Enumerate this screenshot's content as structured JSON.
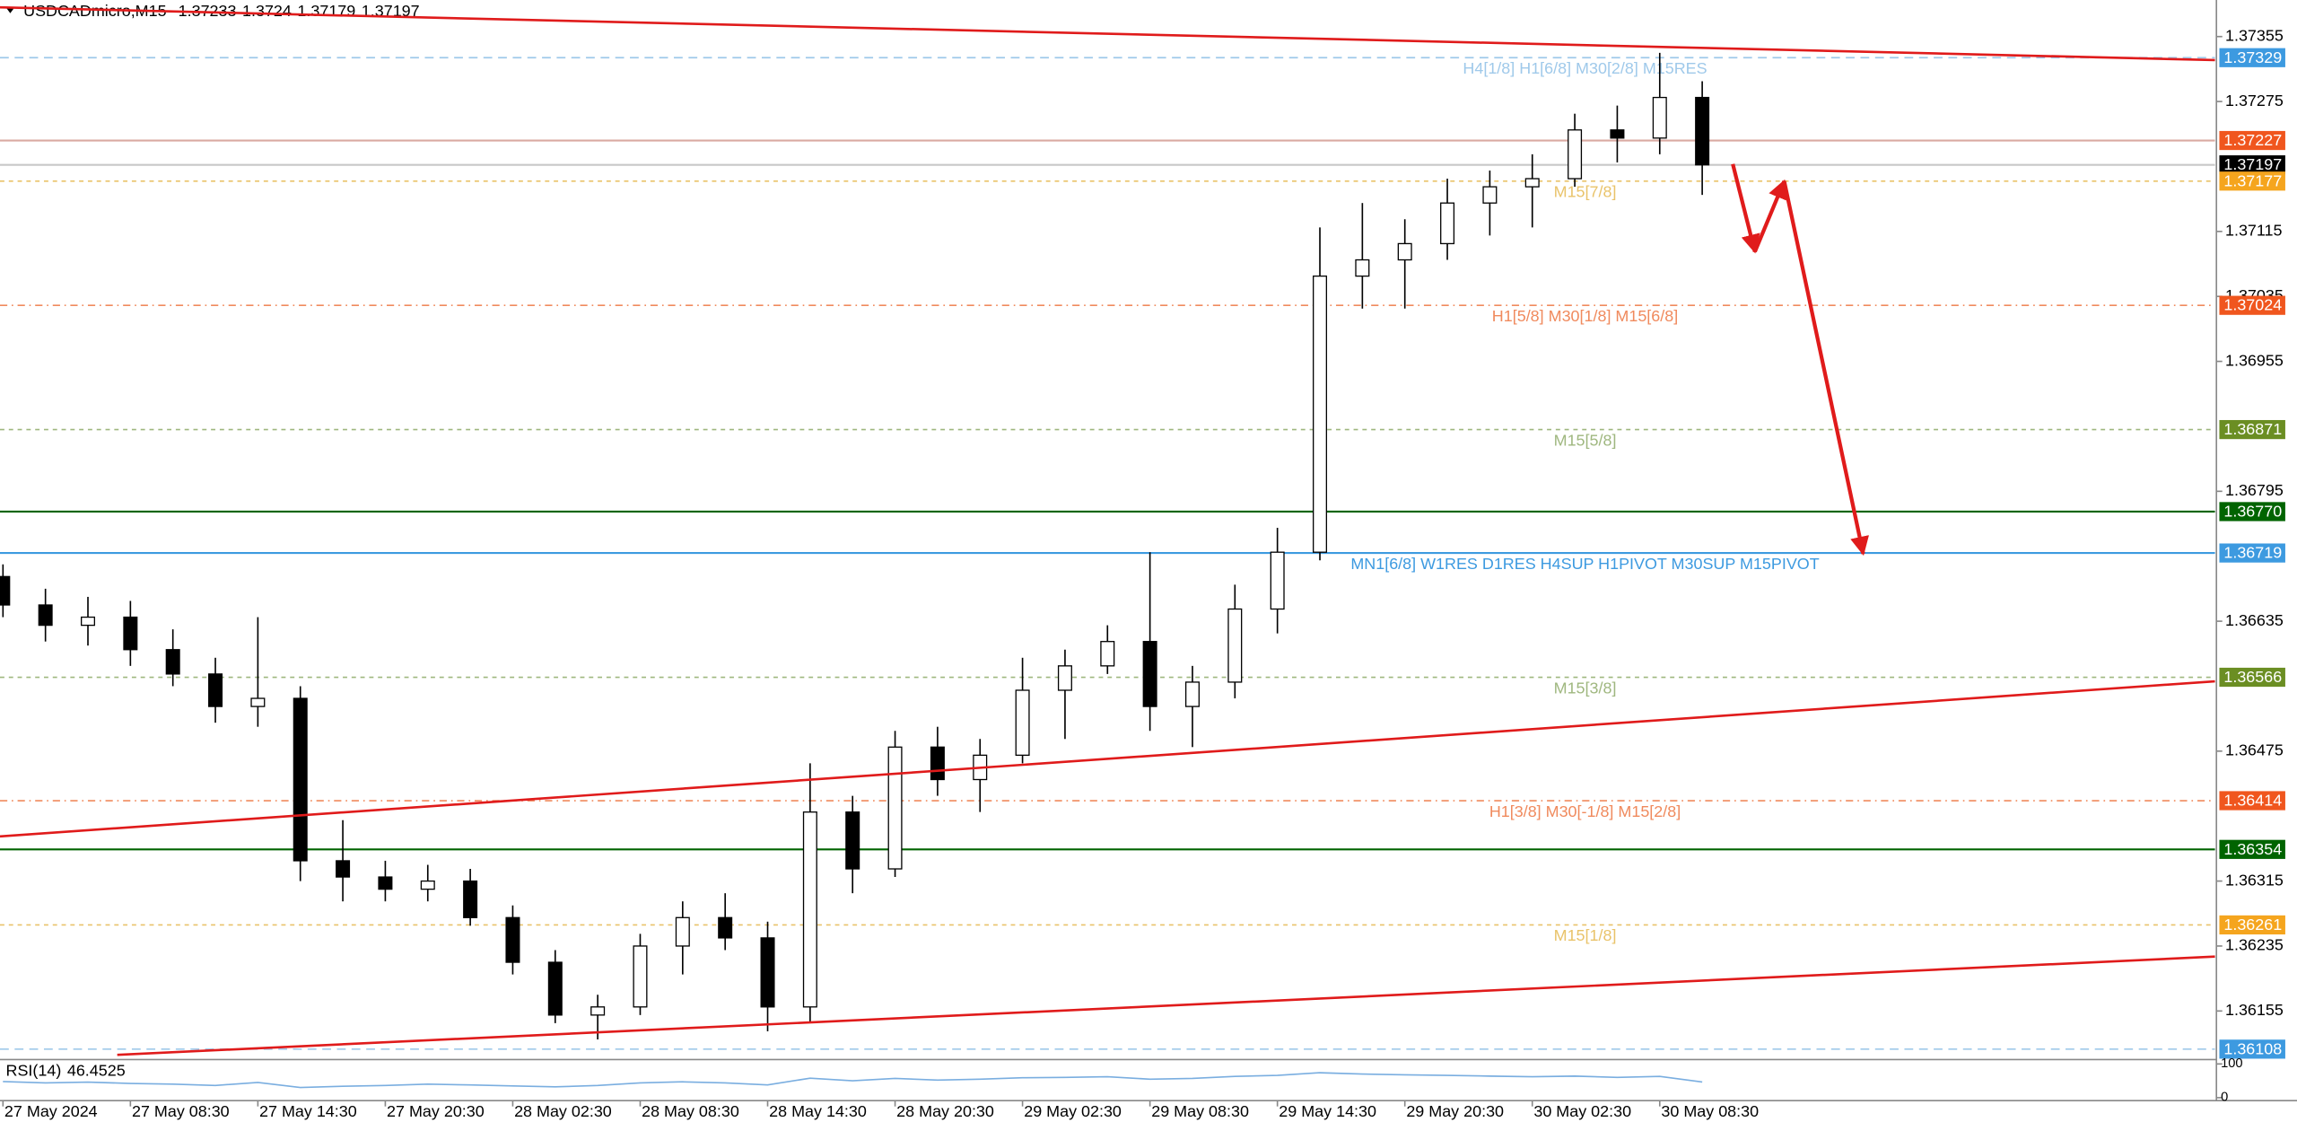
{
  "chart_data": {
    "type": "candlestick",
    "symbol": "USDCADmicro,M15",
    "quote": [
      1.37233,
      1.3724,
      1.37179,
      1.37197
    ],
    "candles": {
      "open": [
        1.3669,
        1.36655,
        1.3663,
        1.3664,
        1.366,
        1.3657,
        1.3653,
        1.3654,
        1.3634,
        1.3632,
        1.36305,
        1.36315,
        1.3627,
        1.36215,
        1.3615,
        1.3616,
        1.36235,
        1.3627,
        1.36245,
        1.3616,
        1.364,
        1.3633,
        1.3648,
        1.3644,
        1.3647,
        1.3655,
        1.3658,
        1.3661,
        1.3653,
        1.3656,
        1.3665,
        1.3672,
        1.3706,
        1.3708,
        1.371,
        1.3715,
        1.3717,
        1.3718,
        1.3724,
        1.3723,
        1.3728
      ],
      "high": [
        1.36705,
        1.36675,
        1.36665,
        1.3666,
        1.36625,
        1.3659,
        1.3664,
        1.36555,
        1.3639,
        1.3634,
        1.36335,
        1.3633,
        1.36285,
        1.3623,
        1.36175,
        1.3625,
        1.3629,
        1.363,
        1.36265,
        1.3646,
        1.3642,
        1.365,
        1.36505,
        1.3649,
        1.3659,
        1.366,
        1.3663,
        1.3672,
        1.3658,
        1.3668,
        1.3675,
        1.3712,
        1.3715,
        1.3713,
        1.3718,
        1.3719,
        1.3721,
        1.3726,
        1.3727,
        1.37335,
        1.373
      ],
      "low": [
        1.3664,
        1.3661,
        1.36605,
        1.3658,
        1.36555,
        1.3651,
        1.36505,
        1.36315,
        1.3629,
        1.3629,
        1.3629,
        1.3626,
        1.362,
        1.3614,
        1.3612,
        1.3615,
        1.362,
        1.3623,
        1.3613,
        1.3614,
        1.363,
        1.3632,
        1.3642,
        1.364,
        1.3646,
        1.3649,
        1.3657,
        1.365,
        1.3648,
        1.3654,
        1.3662,
        1.3671,
        1.3702,
        1.3702,
        1.3708,
        1.3711,
        1.3712,
        1.3717,
        1.372,
        1.3721,
        1.3716
      ],
      "close": [
        1.36655,
        1.3663,
        1.3664,
        1.366,
        1.3657,
        1.3653,
        1.3654,
        1.3634,
        1.3632,
        1.36305,
        1.36315,
        1.3627,
        1.36215,
        1.3615,
        1.3616,
        1.36235,
        1.3627,
        1.36245,
        1.3616,
        1.364,
        1.3633,
        1.3648,
        1.3644,
        1.3647,
        1.3655,
        1.3658,
        1.3661,
        1.3653,
        1.3656,
        1.3665,
        1.3672,
        1.3706,
        1.3708,
        1.371,
        1.3715,
        1.3717,
        1.3718,
        1.3724,
        1.3723,
        1.3728,
        1.37197
      ]
    },
    "xlim": [
      -0.07,
      52.07
    ],
    "xticks": [
      {
        "value": 0,
        "label": "27 May 2024"
      },
      {
        "value": 3,
        "label": "27 May 08:30"
      },
      {
        "value": 6,
        "label": "27 May 14:30"
      },
      {
        "value": 9,
        "label": "27 May 20:30"
      },
      {
        "value": 12,
        "label": "28 May 02:30"
      },
      {
        "value": 15,
        "label": "28 May 08:30"
      },
      {
        "value": 18,
        "label": "28 May 14:30"
      },
      {
        "value": 21,
        "label": "28 May 20:30"
      },
      {
        "value": 24,
        "label": "29 May 02:30"
      },
      {
        "value": 27,
        "label": "29 May 08:30"
      },
      {
        "value": 30,
        "label": "29 May 14:30"
      },
      {
        "value": 33,
        "label": "29 May 20:30"
      },
      {
        "value": 36,
        "label": "30 May 02:30"
      },
      {
        "value": 39,
        "label": "30 May 08:30"
      }
    ],
    "ylim": [
      1.36097,
      1.374
    ],
    "yticks": [
      1.37355,
      1.37275,
      1.37115,
      1.37035,
      1.36955,
      1.36795,
      1.36635,
      1.36475,
      1.36315,
      1.36235,
      1.36155
    ],
    "levels": [
      {
        "price": 1.37329,
        "color": "#9fc9ea",
        "box": "#3d9ae0",
        "dash": "6 4",
        "text": "H4[1/8] H1[6/8] M30[2/8] M15RES"
      },
      {
        "price": 1.37227,
        "color": "#d9aaa2",
        "box": "#f0561e",
        "dash": "none"
      },
      {
        "price": 1.37197,
        "color": "#c8c8c8",
        "box": "#000000",
        "dash": "none"
      },
      {
        "price": 1.37177,
        "color": "#e9c36a",
        "box": "#f5a51e",
        "dash": "3 3",
        "text": "M15[7/8]"
      },
      {
        "price": {
          "value": 1.37024,
          "label": "1.37024"
        },
        "color": "#f08a5d",
        "box": "#f0561e",
        "dash": "5 3 1 3",
        "text": "H1[5/8] M30[1/8] M15[6/8]"
      },
      {
        "price": 1.36871,
        "color": "#9fb77f",
        "box": "#6b8e23",
        "dash": "3 3",
        "text": "M15[5/8]"
      },
      {
        "price": {
          "value": 1.3677,
          "label": "1.36770"
        },
        "color": "#006400",
        "box": "#006400",
        "dash": "none"
      },
      {
        "price": 1.36719,
        "color": "#3d9ae0",
        "box": "#3d9ae0",
        "dash": "none",
        "text": "MN1[6/8] W1RES D1RES H4SUP H1PIVOT M30SUP M15PIVOT"
      },
      {
        "price": 1.36566,
        "color": "#9fb77f",
        "box": "#6b8e23",
        "dash": "3 3",
        "text": "M15[3/8]"
      },
      {
        "price": 1.36414,
        "color": "#f08a5d",
        "box": "#f0561e",
        "dash": "5 3 1 3",
        "text": "H1[3/8] M30[-1/8] M15[2/8]"
      },
      {
        "price": 1.36354,
        "color": "#006400",
        "box": "#006400",
        "dash": "none"
      },
      {
        "price": 1.36261,
        "color": "#e9c36a",
        "box": "#f5a51e",
        "dash": "3 3",
        "text": "M15[1/8]"
      },
      {
        "price": 1.36108,
        "color": "#9fc9ea",
        "box": "#3d9ae0",
        "dash": "6 4"
      }
    ],
    "trendlines": [
      {
        "x": [
          -0.07,
          52.07
        ],
        "y": [
          1.37391,
          1.37326
        ],
        "color": "#e01b1b"
      },
      {
        "x": [
          -0.07,
          52.07
        ],
        "y": [
          1.3637,
          1.36561
        ],
        "color": "#e01b1b"
      },
      {
        "x": [
          2.69,
          52.07
        ],
        "y": [
          1.36101,
          1.36222
        ],
        "color": "#e01b1b"
      }
    ],
    "projection": {
      "x": [
        40.72,
        41.24,
        41.93,
        43.79
      ],
      "y": [
        1.37198,
        1.3709,
        1.37177,
        1.36718
      ],
      "color": "#e01b1b"
    },
    "rsi": {
      "label": "RSI(14)",
      "current": 46.4525,
      "color": "#7aaee0",
      "ylim": [
        0,
        100
      ],
      "yticks": [
        0,
        100
      ],
      "values": [
        48,
        44,
        46,
        42,
        40,
        36,
        45,
        30,
        34,
        36,
        40,
        38,
        35,
        32,
        36,
        44,
        47,
        44,
        38,
        58,
        50,
        57,
        52,
        55,
        59,
        60,
        62,
        55,
        57,
        63,
        66,
        74,
        70,
        68,
        66,
        64,
        62,
        64,
        60,
        63,
        46.4525
      ]
    }
  }
}
